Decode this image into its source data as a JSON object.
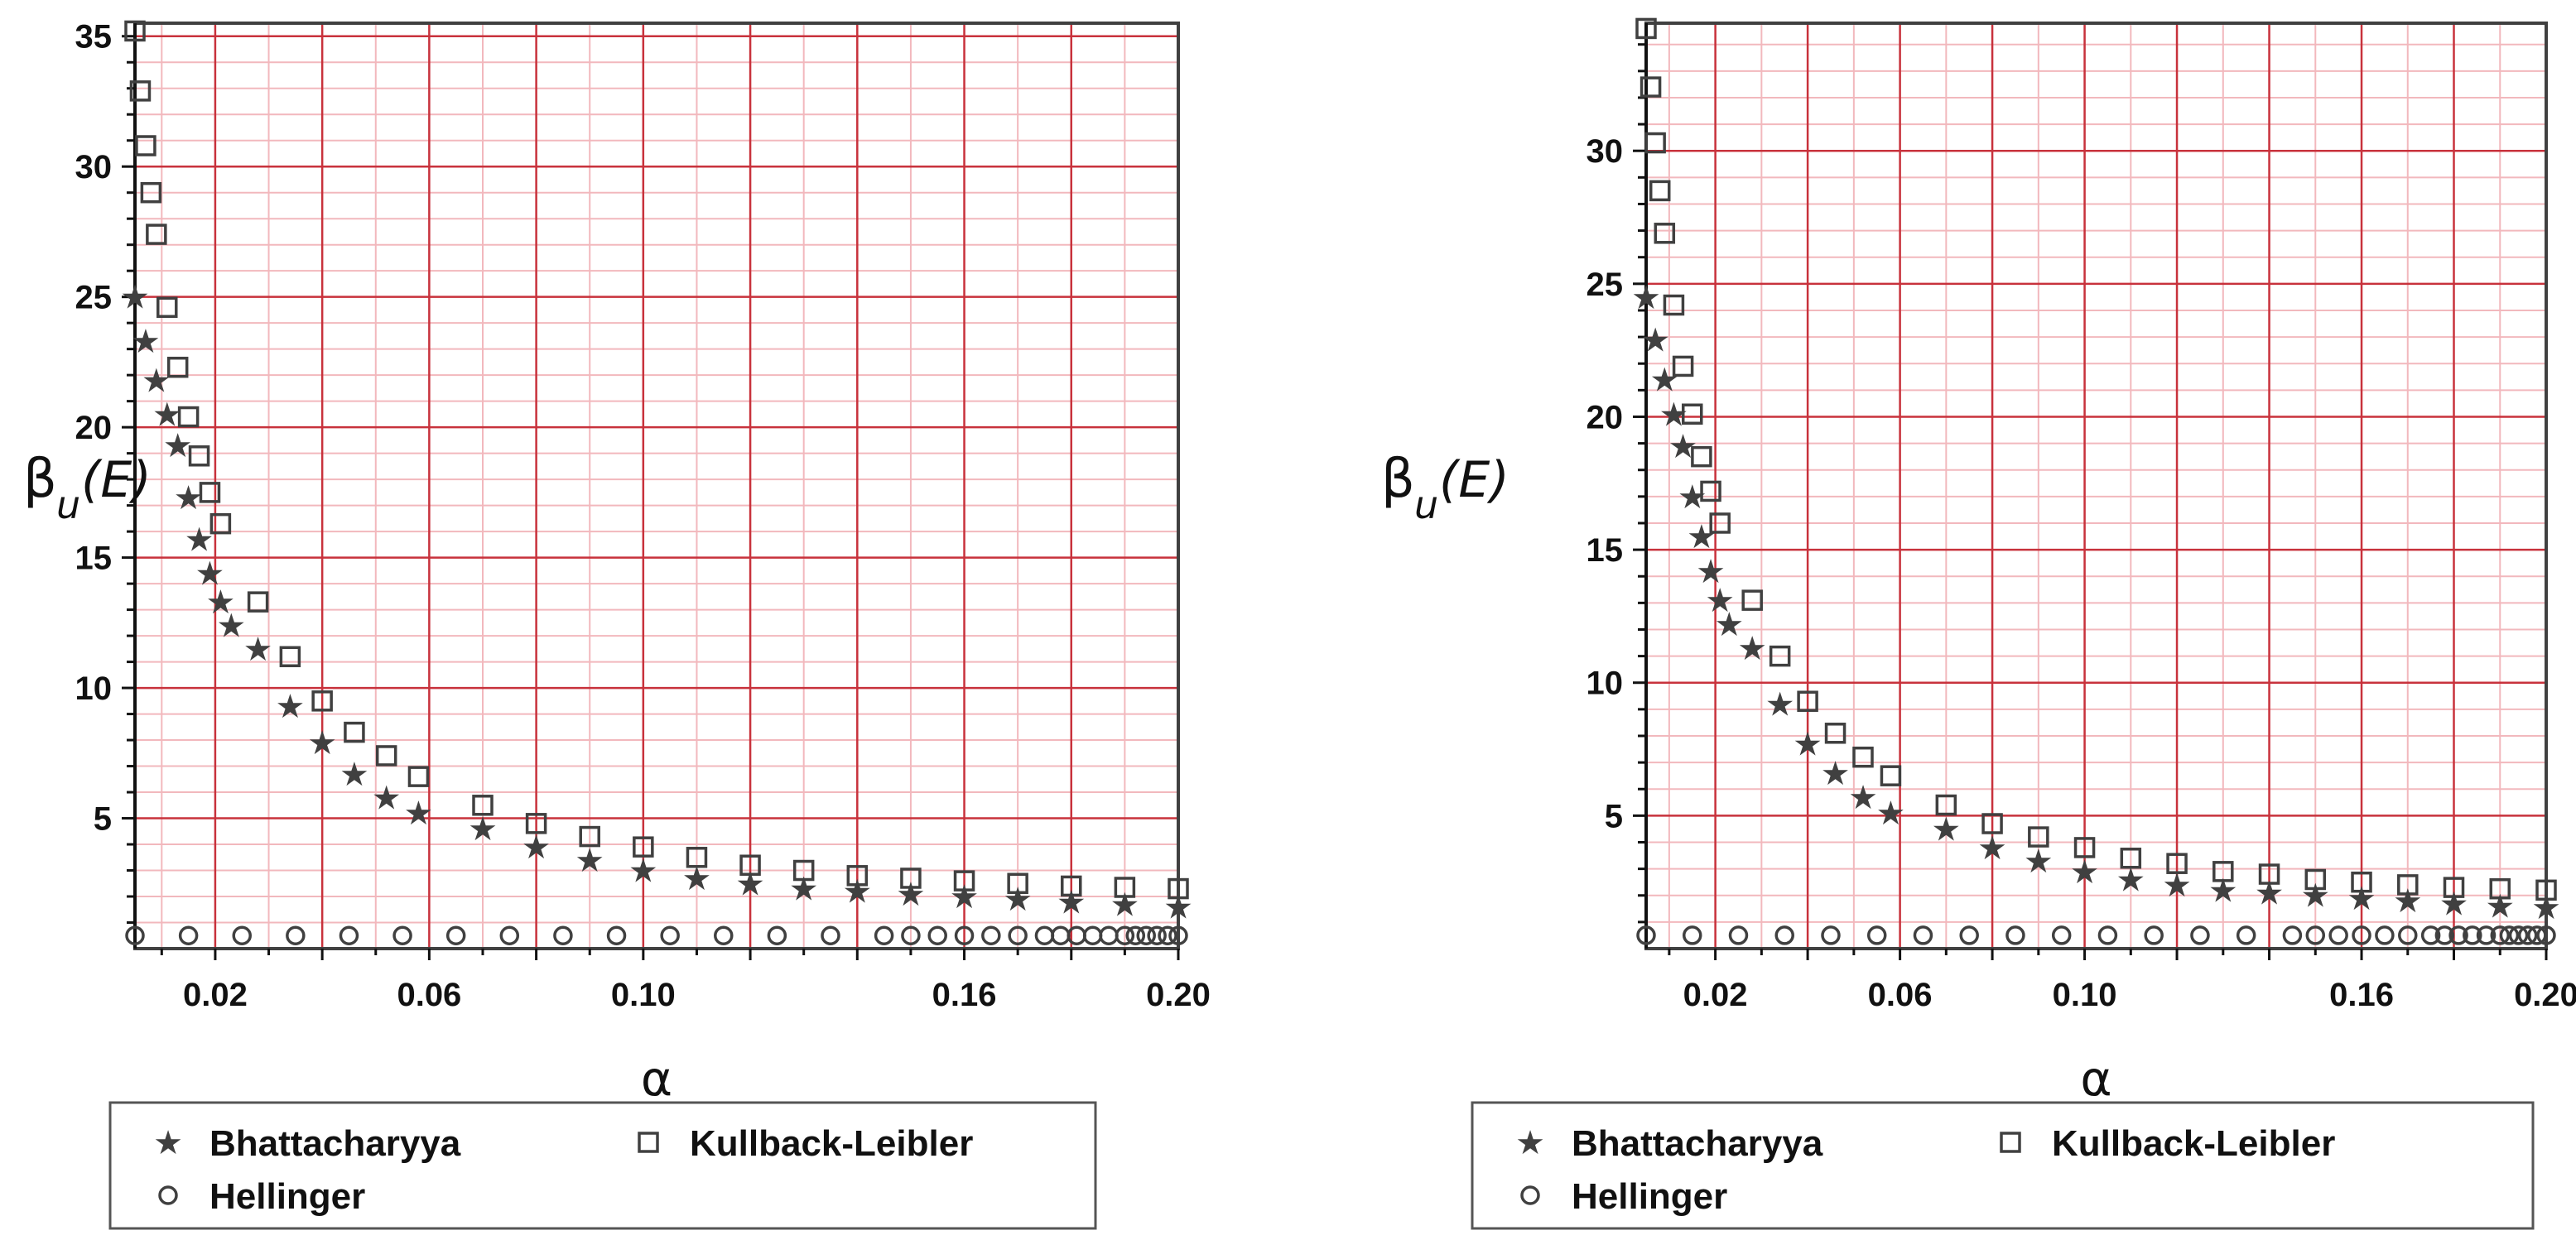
{
  "chart_data": [
    {
      "type": "scatter",
      "title": "",
      "xlabel": "α",
      "ylabel_main": "β",
      "ylabel_sub": "u",
      "ylabel_arg": "(E)",
      "xlim": [
        0.005,
        0.2
      ],
      "ylim": [
        0,
        35.5
      ],
      "xticks": [
        0.02,
        0.06,
        0.1,
        0.16,
        0.2
      ],
      "xtick_labels": [
        "0.02",
        "0.06",
        "0.10",
        "0.16",
        "0.20"
      ],
      "yticks": [
        5,
        10,
        15,
        20,
        25,
        30,
        35
      ],
      "ytick_labels": [
        "5",
        "10",
        "15",
        "20",
        "25",
        "30",
        "35"
      ],
      "grid": true,
      "legend_position": "bottom",
      "series": [
        {
          "name": "Bhattacharyya",
          "marker": "star",
          "x": [
            0.005,
            0.007,
            0.009,
            0.011,
            0.013,
            0.015,
            0.017,
            0.019,
            0.021,
            0.023,
            0.028,
            0.034,
            0.04,
            0.046,
            0.052,
            0.058,
            0.07,
            0.08,
            0.09,
            0.1,
            0.11,
            0.12,
            0.13,
            0.14,
            0.15,
            0.16,
            0.17,
            0.18,
            0.19,
            0.2
          ],
          "y": [
            25.0,
            23.3,
            21.8,
            20.5,
            19.3,
            17.3,
            15.7,
            14.4,
            13.3,
            12.4,
            11.5,
            9.3,
            7.9,
            6.7,
            5.8,
            5.2,
            4.6,
            3.9,
            3.4,
            3.0,
            2.7,
            2.5,
            2.3,
            2.2,
            2.1,
            2.0,
            1.9,
            1.8,
            1.7,
            1.6
          ]
        },
        {
          "name": "Kullback-Leibler",
          "marker": "square",
          "x": [
            0.005,
            0.006,
            0.007,
            0.008,
            0.009,
            0.011,
            0.013,
            0.015,
            0.017,
            0.019,
            0.021,
            0.028,
            0.034,
            0.04,
            0.046,
            0.052,
            0.058,
            0.07,
            0.08,
            0.09,
            0.1,
            0.11,
            0.12,
            0.13,
            0.14,
            0.15,
            0.16,
            0.17,
            0.18,
            0.19,
            0.2
          ],
          "y": [
            35.2,
            32.9,
            30.8,
            29.0,
            27.4,
            24.6,
            22.3,
            20.4,
            18.9,
            17.5,
            16.3,
            13.3,
            11.2,
            9.5,
            8.3,
            7.4,
            6.6,
            5.5,
            4.8,
            4.3,
            3.9,
            3.5,
            3.2,
            3.0,
            2.8,
            2.7,
            2.6,
            2.5,
            2.4,
            2.35,
            2.3
          ]
        },
        {
          "name": "Hellinger",
          "marker": "circle",
          "x": [
            0.005,
            0.015,
            0.025,
            0.035,
            0.045,
            0.055,
            0.065,
            0.075,
            0.085,
            0.095,
            0.105,
            0.115,
            0.125,
            0.135,
            0.145,
            0.15,
            0.155,
            0.16,
            0.165,
            0.17,
            0.175,
            0.178,
            0.181,
            0.184,
            0.187,
            0.19,
            0.192,
            0.194,
            0.196,
            0.198,
            0.2
          ],
          "y": [
            0.5,
            0.5,
            0.5,
            0.5,
            0.5,
            0.5,
            0.5,
            0.5,
            0.5,
            0.5,
            0.5,
            0.5,
            0.5,
            0.5,
            0.5,
            0.5,
            0.5,
            0.5,
            0.5,
            0.5,
            0.5,
            0.5,
            0.5,
            0.5,
            0.5,
            0.5,
            0.5,
            0.5,
            0.5,
            0.5,
            0.5
          ]
        }
      ],
      "legend": {
        "rows": [
          [
            "Bhattacharyya",
            "Kullback-Leibler"
          ],
          [
            "Hellinger"
          ]
        ]
      }
    },
    {
      "type": "scatter",
      "title": "",
      "xlabel": "α",
      "ylabel_main": "β",
      "ylabel_sub": "u",
      "ylabel_arg": "(E)",
      "xlim": [
        0.005,
        0.2
      ],
      "ylim": [
        0,
        34.8
      ],
      "xticks": [
        0.02,
        0.06,
        0.1,
        0.16,
        0.2
      ],
      "xtick_labels": [
        "0.02",
        "0.06",
        "0.10",
        "0.16",
        "0.20"
      ],
      "yticks": [
        5,
        10,
        15,
        20,
        25,
        30
      ],
      "ytick_labels": [
        "5",
        "10",
        "15",
        "20",
        "25",
        "30"
      ],
      "grid": true,
      "legend_position": "bottom",
      "series": [
        {
          "name": "Bhattacharyya",
          "marker": "star",
          "x": [
            0.005,
            0.007,
            0.009,
            0.011,
            0.013,
            0.015,
            0.017,
            0.019,
            0.021,
            0.023,
            0.028,
            0.034,
            0.04,
            0.046,
            0.052,
            0.058,
            0.07,
            0.08,
            0.09,
            0.1,
            0.11,
            0.12,
            0.13,
            0.14,
            0.15,
            0.16,
            0.17,
            0.18,
            0.19,
            0.2
          ],
          "y": [
            24.5,
            22.9,
            21.4,
            20.1,
            18.9,
            17.0,
            15.5,
            14.2,
            13.1,
            12.2,
            11.3,
            9.2,
            7.7,
            6.6,
            5.7,
            5.1,
            4.5,
            3.8,
            3.3,
            2.9,
            2.6,
            2.4,
            2.2,
            2.1,
            2.0,
            1.9,
            1.8,
            1.7,
            1.6,
            1.55
          ]
        },
        {
          "name": "Kullback-Leibler",
          "marker": "square",
          "x": [
            0.005,
            0.006,
            0.007,
            0.008,
            0.009,
            0.011,
            0.013,
            0.015,
            0.017,
            0.019,
            0.021,
            0.028,
            0.034,
            0.04,
            0.046,
            0.052,
            0.058,
            0.07,
            0.08,
            0.09,
            0.1,
            0.11,
            0.12,
            0.13,
            0.14,
            0.15,
            0.16,
            0.17,
            0.18,
            0.19,
            0.2
          ],
          "y": [
            34.6,
            32.4,
            30.3,
            28.5,
            26.9,
            24.2,
            21.9,
            20.1,
            18.5,
            17.2,
            16.0,
            13.1,
            11.0,
            9.3,
            8.1,
            7.2,
            6.5,
            5.4,
            4.7,
            4.2,
            3.8,
            3.4,
            3.2,
            2.9,
            2.8,
            2.6,
            2.5,
            2.4,
            2.3,
            2.25,
            2.2
          ]
        },
        {
          "name": "Hellinger",
          "marker": "circle",
          "x": [
            0.005,
            0.015,
            0.025,
            0.035,
            0.045,
            0.055,
            0.065,
            0.075,
            0.085,
            0.095,
            0.105,
            0.115,
            0.125,
            0.135,
            0.145,
            0.15,
            0.155,
            0.16,
            0.165,
            0.17,
            0.175,
            0.178,
            0.181,
            0.184,
            0.187,
            0.19,
            0.192,
            0.194,
            0.196,
            0.198,
            0.2
          ],
          "y": [
            0.5,
            0.5,
            0.5,
            0.5,
            0.5,
            0.5,
            0.5,
            0.5,
            0.5,
            0.5,
            0.5,
            0.5,
            0.5,
            0.5,
            0.5,
            0.5,
            0.5,
            0.5,
            0.5,
            0.5,
            0.5,
            0.5,
            0.5,
            0.5,
            0.5,
            0.5,
            0.5,
            0.5,
            0.5,
            0.5,
            0.5
          ]
        }
      ],
      "legend": {
        "rows": [
          [
            "Bhattacharyya",
            "Kullback-Leibler"
          ],
          [
            "Hellinger"
          ]
        ]
      }
    }
  ],
  "colors": {
    "grid_major": "#c8323c",
    "grid_minor": "#f2b8bd",
    "frame": "#404040",
    "marker": "#404040",
    "text": "#111111"
  }
}
